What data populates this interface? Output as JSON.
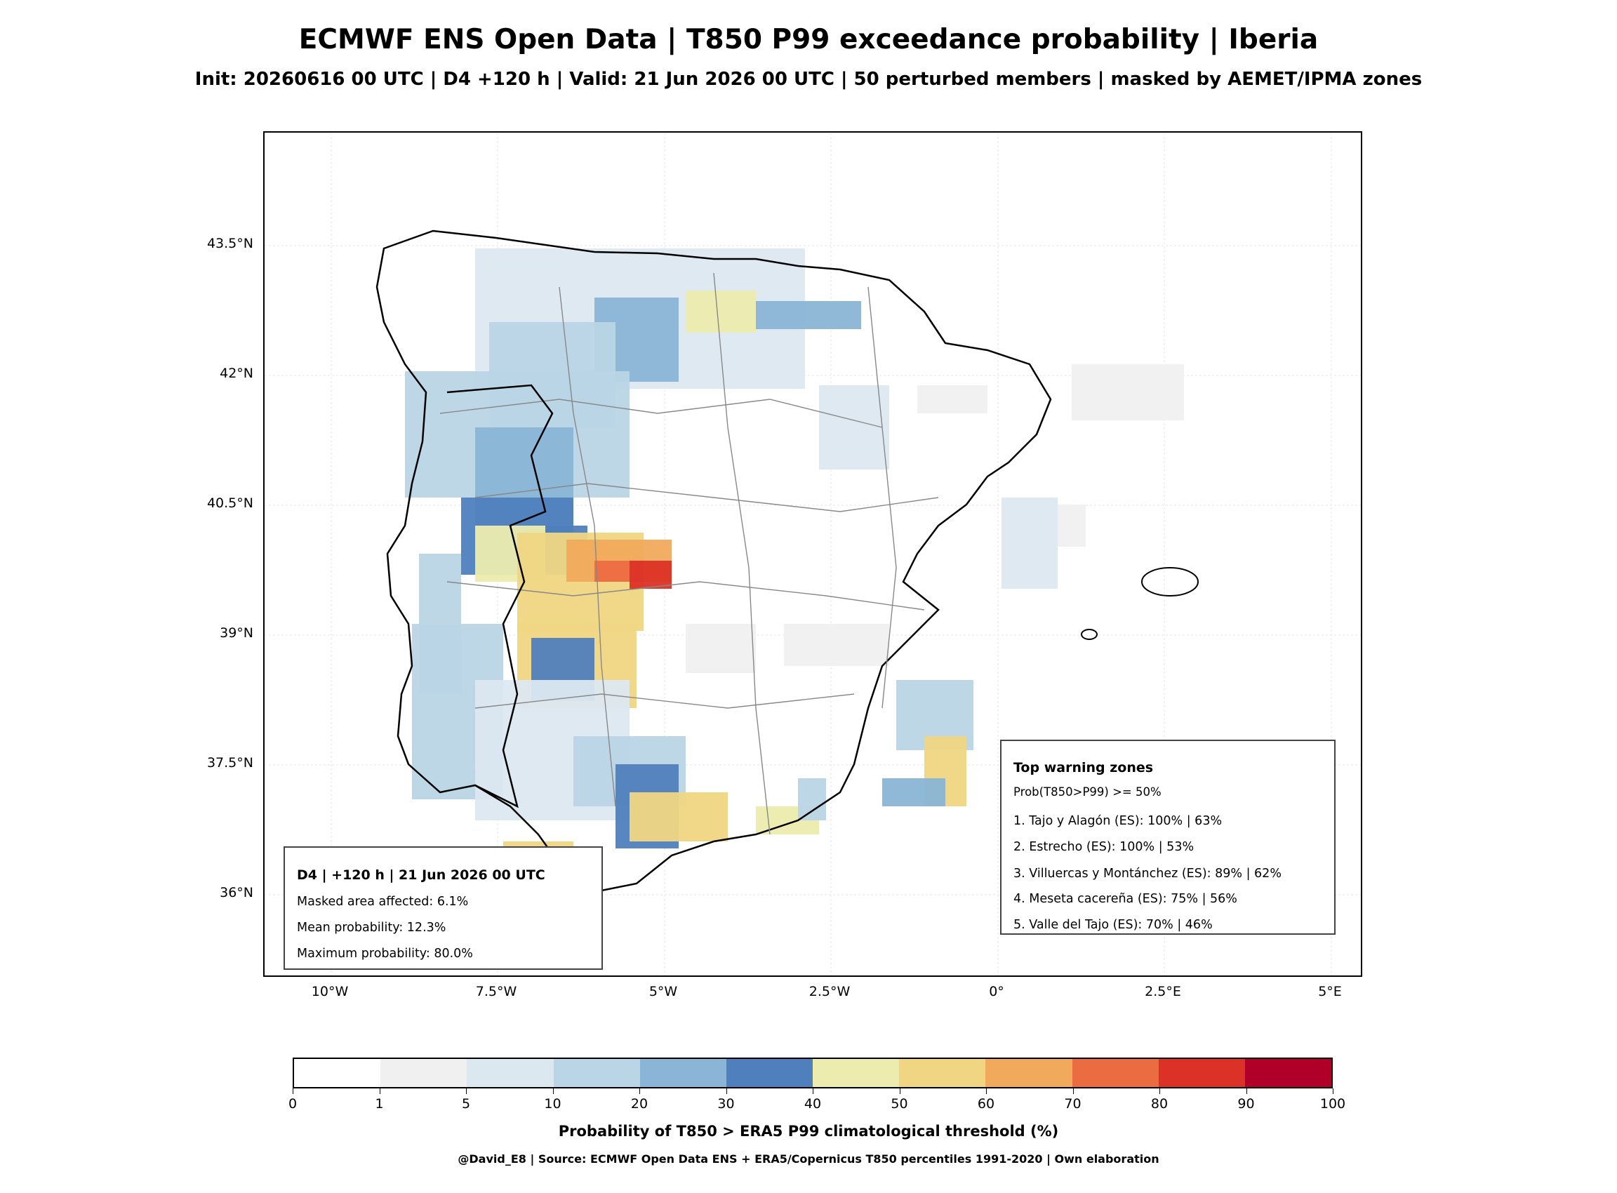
{
  "title": "ECMWF ENS Open Data | T850 P99 exceedance probability | Iberia",
  "subtitle": "Init: 20260616 00 UTC | D4 +120 h | Valid: 21 Jun 2026 00 UTC | 50 perturbed members | masked by AEMET/IPMA zones",
  "map": {
    "lat_labels": [
      "43.5°N",
      "42°N",
      "40.5°N",
      "39°N",
      "37.5°N",
      "36°N"
    ],
    "lon_labels": [
      "10°W",
      "7.5°W",
      "5°W",
      "2.5°W",
      "0°",
      "2.5°E",
      "5°E"
    ],
    "lon_range": [
      -11,
      5.5
    ],
    "lat_range": [
      35.0,
      44.8
    ]
  },
  "summary_box": {
    "header": "D4 | +120 h | 21 Jun 2026 00 UTC",
    "line1": "Masked area affected: 6.1%",
    "line2": "Mean probability: 12.3%",
    "line3": "Maximum probability: 80.0%"
  },
  "warning_box": {
    "header": "Top warning zones",
    "criterion": "Prob(T850>P99) >= 50%",
    "zones": [
      "1. Tajo y Alagón (ES): 100% | 63%",
      "2. Estrecho (ES): 100% | 53%",
      "3. Villuercas y Montánchez (ES): 89% | 62%",
      "4. Meseta cacereña (ES): 75% | 56%",
      "5. Valle del Tajo (ES): 70% | 46%"
    ]
  },
  "colorbar": {
    "ticks": [
      "0",
      "1",
      "5",
      "10",
      "20",
      "30",
      "40",
      "50",
      "60",
      "70",
      "80",
      "90",
      "100"
    ],
    "colors": [
      "#ffffff",
      "#f0f0f0",
      "#dce8f0",
      "#b9d5e6",
      "#8ab5d6",
      "#4f7fbd",
      "#ececae",
      "#f0d683",
      "#f1aa5c",
      "#ec6c41",
      "#dc3126",
      "#b0002a"
    ],
    "title": "Probability of T850 > ERA5 P99 climatological threshold (%)"
  },
  "source": "@David_E8 | Source: ECMWF Open Data ENS + ERA5/Copernicus T850 percentiles 1991-2020 | Own elaboration"
}
